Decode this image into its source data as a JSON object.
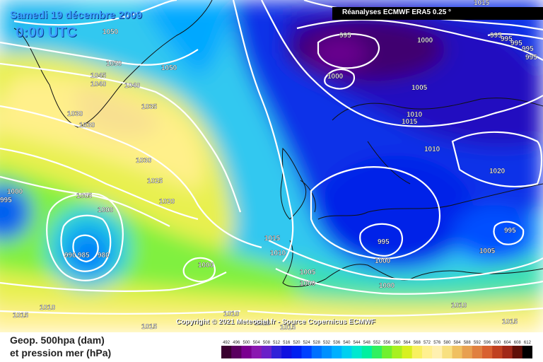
{
  "header": {
    "date": "Samedi 19 décembre 2009",
    "time": "0:00 UTC",
    "source": "Réanalyses ECMWF ERA5 0.25 °"
  },
  "copyright": "Copyright © 2021 Meteociel.fr - Source Copernicus ECMWF",
  "legend": {
    "title_line1": "Geop. 500hpa (dam)",
    "title_line2": "et pression mer (hPa)",
    "ticks": [
      "492",
      "496",
      "500",
      "504",
      "508",
      "512",
      "516",
      "520",
      "524",
      "528",
      "532",
      "536",
      "540",
      "544",
      "548",
      "552",
      "556",
      "560",
      "564",
      "568",
      "572",
      "576",
      "580",
      "584",
      "588",
      "592",
      "596",
      "600",
      "604",
      "608",
      "612"
    ],
    "colors": [
      "#3a0030",
      "#5a0060",
      "#7a0090",
      "#8a18b0",
      "#6a20c8",
      "#3020d8",
      "#1010e0",
      "#0020f0",
      "#0040ff",
      "#0070ff",
      "#0090ff",
      "#00b0ff",
      "#00d0f0",
      "#00e8d0",
      "#00f0a0",
      "#30f060",
      "#70f030",
      "#a8f020",
      "#d8f020",
      "#f8f060",
      "#fff090",
      "#fff0b0",
      "#f8e080",
      "#f0c060",
      "#e8a050",
      "#e08040",
      "#d86030",
      "#c04020",
      "#a02818",
      "#601008",
      "#000000"
    ]
  },
  "pressure_labels": [
    {
      "text": "1050"
    },
    {
      "text": "1050"
    },
    {
      "text": "1050"
    },
    {
      "text": "1045"
    },
    {
      "text": "1040"
    },
    {
      "text": "1040"
    },
    {
      "text": "1035"
    },
    {
      "text": "1030"
    },
    {
      "text": "1030"
    },
    {
      "text": "1030"
    },
    {
      "text": "1025"
    },
    {
      "text": "1020"
    },
    {
      "text": "1005"
    },
    {
      "text": "1000"
    },
    {
      "text": "1000"
    },
    {
      "text": "995"
    },
    {
      "text": "990"
    },
    {
      "text": "985"
    },
    {
      "text": "980"
    },
    {
      "text": "1000"
    },
    {
      "text": "1015"
    },
    {
      "text": "1015"
    },
    {
      "text": "1010"
    },
    {
      "text": "1010"
    },
    {
      "text": "1010"
    },
    {
      "text": "995"
    },
    {
      "text": "1000"
    },
    {
      "text": "1000"
    },
    {
      "text": "1005"
    },
    {
      "text": "1000"
    },
    {
      "text": "1010"
    },
    {
      "text": "1015"
    },
    {
      "text": "1010"
    },
    {
      "text": "1005"
    },
    {
      "text": "1010"
    },
    {
      "text": "1010"
    },
    {
      "text": "1015"
    },
    {
      "text": "1000"
    },
    {
      "text": "995"
    },
    {
      "text": "995"
    },
    {
      "text": "1005"
    },
    {
      "text": "1020"
    },
    {
      "text": "995"
    },
    {
      "text": "995"
    },
    {
      "text": "995"
    },
    {
      "text": "995"
    },
    {
      "text": "1005"
    },
    {
      "text": "1015"
    },
    {
      "text": "1000"
    },
    {
      "text": "995"
    },
    {
      "text": "1015"
    },
    {
      "text": "1015"
    }
  ]
}
